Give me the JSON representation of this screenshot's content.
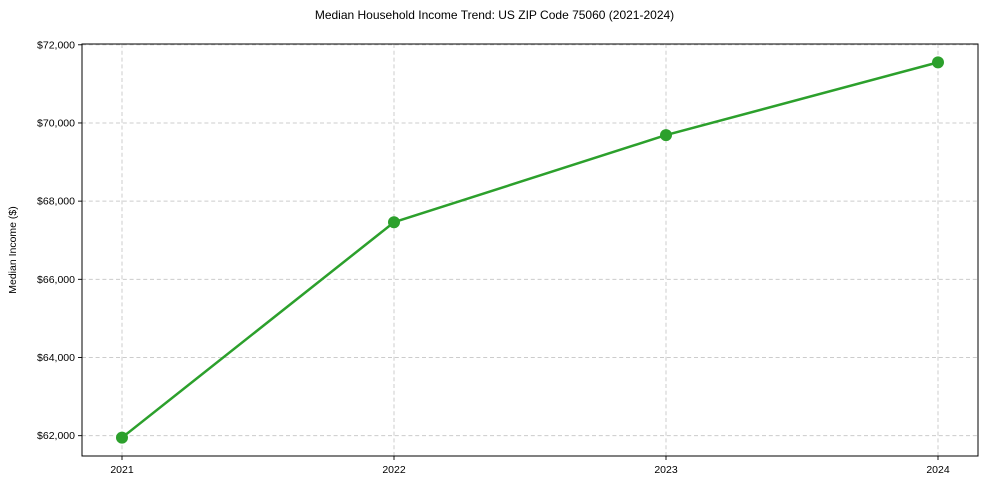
{
  "figure": {
    "title": "Median Household Income Trend: US ZIP Code 75060 (2021-2024)",
    "ylabel": "Median Income ($)"
  },
  "chart_data": {
    "type": "line",
    "title": "Median Household Income Trend: US ZIP Code 75060 (2021-2024)",
    "xlabel": "",
    "ylabel": "Median Income ($)",
    "x": [
      "2021",
      "2022",
      "2023",
      "2024"
    ],
    "series": [
      {
        "name": "Median Household Income",
        "values": [
          61950,
          67460,
          69690,
          71550
        ],
        "color": "#2ca02c",
        "marker": "circle"
      }
    ],
    "ylim": [
      61480,
      72020
    ],
    "yticks": [
      62000,
      64000,
      66000,
      68000,
      70000,
      72000
    ],
    "ytick_prefix": "$",
    "xtick_labels": [
      "2021",
      "2022",
      "2023",
      "2024"
    ],
    "grid": {
      "show": true,
      "style": "dashed",
      "color": "#cccccc"
    },
    "legend_position": "none",
    "line_width": 2.5,
    "marker_size": 6,
    "background": "#ffffff",
    "spine_color": "#000000"
  }
}
